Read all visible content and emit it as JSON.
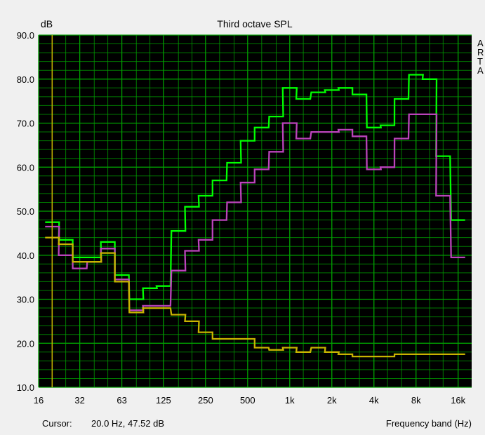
{
  "chart_data": {
    "type": "line",
    "title": "Third octave SPL",
    "ylabel": "dB",
    "xlabel": "Frequency band (Hz)",
    "ylim": [
      10,
      90
    ],
    "xscale": "log",
    "xlim": [
      16,
      20000
    ],
    "grid": true,
    "background": "#000000",
    "grid_color": "#00a000",
    "y_ticks": [
      {
        "value": 10,
        "label": "10.0"
      },
      {
        "value": 20,
        "label": "20.0"
      },
      {
        "value": 30,
        "label": "30.0"
      },
      {
        "value": 40,
        "label": "40.0"
      },
      {
        "value": 50,
        "label": "50.0"
      },
      {
        "value": 60,
        "label": "60.0"
      },
      {
        "value": 70,
        "label": "70.0"
      },
      {
        "value": 80,
        "label": "80.0"
      },
      {
        "value": 90,
        "label": "90.0"
      }
    ],
    "x_ticks": [
      {
        "value": 16,
        "label": "16"
      },
      {
        "value": 31.5,
        "label": "32"
      },
      {
        "value": 63,
        "label": "63"
      },
      {
        "value": 125,
        "label": "125"
      },
      {
        "value": 250,
        "label": "250"
      },
      {
        "value": 500,
        "label": "500"
      },
      {
        "value": 1000,
        "label": "1k"
      },
      {
        "value": 2000,
        "label": "2k"
      },
      {
        "value": 4000,
        "label": "4k"
      },
      {
        "value": 8000,
        "label": "8k"
      },
      {
        "value": 16000,
        "label": "16k"
      }
    ],
    "bands": [
      20,
      25,
      31.5,
      40,
      50,
      63,
      80,
      100,
      125,
      160,
      200,
      250,
      315,
      400,
      500,
      630,
      800,
      1000,
      1250,
      1600,
      2000,
      2500,
      3150,
      4000,
      5000,
      6300,
      8000,
      10000,
      12500,
      16000
    ],
    "series": [
      {
        "color": "#00ff00",
        "values": [
          47.5,
          43.5,
          39.5,
          39.5,
          43,
          35.5,
          30,
          32.5,
          33,
          45.5,
          51,
          53.5,
          57,
          61,
          66,
          69,
          71.5,
          78,
          75.5,
          77,
          77.5,
          78,
          76.5,
          69,
          69.5,
          75.5,
          81,
          80,
          62.5,
          48
        ]
      },
      {
        "color": "#bb44bb",
        "values": [
          46.5,
          40,
          37,
          38.5,
          41.5,
          34.5,
          27.5,
          28.5,
          28.5,
          36.5,
          41,
          43.5,
          48,
          52,
          56.5,
          59.5,
          63.5,
          70,
          66.5,
          68,
          68,
          68.5,
          67,
          59.5,
          60,
          66.5,
          72,
          72,
          53.5,
          39.5
        ]
      },
      {
        "color": "#c8b400",
        "values": [
          44,
          42.5,
          38.5,
          38.5,
          40.5,
          34,
          27,
          28,
          28,
          26.5,
          25,
          22.5,
          21,
          21,
          21,
          19,
          18.5,
          19,
          18,
          19,
          18,
          17.5,
          17,
          17,
          17,
          17.5,
          17.5,
          17.5,
          17.5,
          17.5
        ]
      }
    ],
    "cursor": {
      "x": 20,
      "color": "#c8b400"
    }
  },
  "footer": {
    "cursor_label": "Cursor:",
    "cursor_value": "20.0 Hz, 47.52 dB"
  },
  "legend_letters": [
    "A",
    "R",
    "T",
    "A"
  ]
}
